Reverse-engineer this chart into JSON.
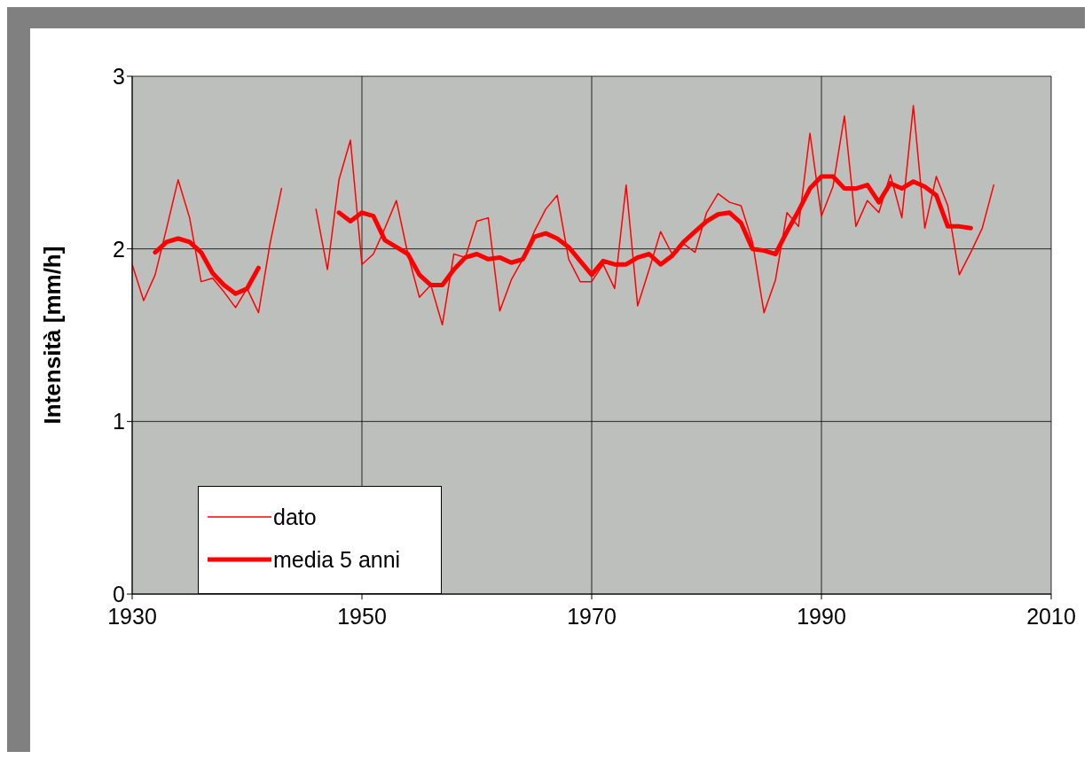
{
  "chart_data": {
    "type": "line",
    "ylabel": "Intensità [mm/h]",
    "x": [
      1930,
      1931,
      1932,
      1933,
      1934,
      1935,
      1936,
      1937,
      1938,
      1939,
      1940,
      1941,
      1942,
      1943,
      1944,
      1945,
      1946,
      1947,
      1948,
      1949,
      1950,
      1951,
      1952,
      1953,
      1954,
      1955,
      1956,
      1957,
      1958,
      1959,
      1960,
      1961,
      1962,
      1963,
      1964,
      1965,
      1966,
      1967,
      1968,
      1969,
      1970,
      1971,
      1972,
      1973,
      1974,
      1975,
      1976,
      1977,
      1978,
      1979,
      1980,
      1981,
      1982,
      1983,
      1984,
      1985,
      1986,
      1987,
      1988,
      1989,
      1990,
      1991,
      1992,
      1993,
      1994,
      1995,
      1996,
      1997,
      1998,
      1999,
      2000,
      2001,
      2002,
      2003,
      2004,
      2005
    ],
    "series": [
      {
        "name": "dato",
        "color": "#ff0000",
        "values": [
          1.91,
          1.7,
          1.85,
          2.12,
          2.4,
          2.18,
          1.81,
          1.83,
          1.75,
          1.66,
          1.77,
          1.63,
          2.03,
          2.35,
          null,
          null,
          2.23,
          1.88,
          2.4,
          2.63,
          1.91,
          1.97,
          2.12,
          2.28,
          1.97,
          1.72,
          1.79,
          1.56,
          1.97,
          1.95,
          2.16,
          2.18,
          1.64,
          1.82,
          1.94,
          2.1,
          2.23,
          2.31,
          1.94,
          1.81,
          1.81,
          1.91,
          1.77,
          2.37,
          1.67,
          1.88,
          2.1,
          1.97,
          2.03,
          1.98,
          2.21,
          2.32,
          2.27,
          2.25,
          2.04,
          1.63,
          1.82,
          2.21,
          2.13,
          2.67,
          2.19,
          2.36,
          2.77,
          2.13,
          2.28,
          2.21,
          2.43,
          2.18,
          2.83,
          2.12,
          2.42,
          2.25,
          1.85,
          1.98,
          2.12,
          2.37
        ]
      },
      {
        "name": "media 5 anni",
        "color": "#ff0000",
        "values": [
          null,
          null,
          1.98,
          2.04,
          2.06,
          2.04,
          1.98,
          1.86,
          1.79,
          1.74,
          1.77,
          1.89,
          null,
          null,
          null,
          null,
          null,
          null,
          2.21,
          2.16,
          2.21,
          2.19,
          2.05,
          2.01,
          1.97,
          1.85,
          1.79,
          1.79,
          1.88,
          1.95,
          1.97,
          1.94,
          1.95,
          1.92,
          1.94,
          2.07,
          2.09,
          2.06,
          2.01,
          1.93,
          1.85,
          1.93,
          1.91,
          1.91,
          1.95,
          1.97,
          1.91,
          1.96,
          2.04,
          2.1,
          2.16,
          2.2,
          2.21,
          2.15,
          2,
          1.99,
          1.97,
          2.1,
          2.22,
          2.35,
          2.42,
          2.42,
          2.35,
          2.35,
          2.37,
          2.27,
          2.38,
          2.35,
          2.39,
          2.36,
          2.31,
          2.13,
          2.13,
          2.12,
          null,
          null
        ]
      }
    ],
    "xlim": [
      1930,
      2010
    ],
    "xticks": [
      1930,
      1950,
      1970,
      1990,
      2010
    ],
    "ylim": [
      0,
      3
    ],
    "yticks": [
      0,
      1,
      2,
      3
    ],
    "grid": true,
    "legend": "bottom left",
    "marker": "none",
    "line_style": "solid"
  }
}
